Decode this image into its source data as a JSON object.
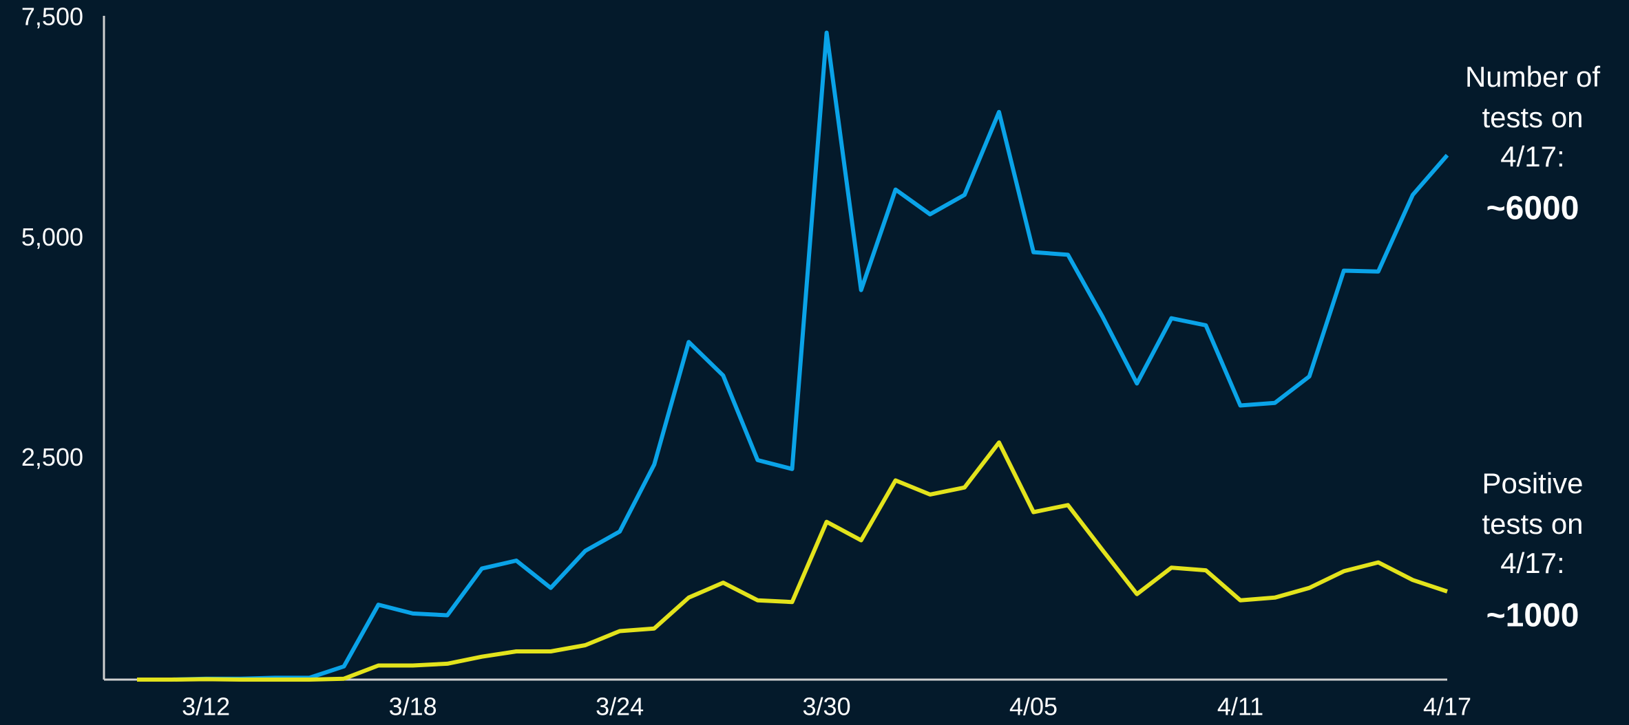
{
  "chart_data": {
    "type": "line",
    "categories": [
      null,
      null,
      "3/12",
      null,
      null,
      null,
      null,
      null,
      "3/18",
      null,
      null,
      null,
      null,
      null,
      "3/24",
      null,
      null,
      null,
      null,
      null,
      "3/30",
      null,
      null,
      null,
      null,
      null,
      "4/05",
      null,
      null,
      null,
      null,
      null,
      "4/11",
      null,
      null,
      null,
      null,
      null,
      "4/17"
    ],
    "series": [
      {
        "color": "#0aa3e8",
        "values": [
          0,
          0,
          10,
          10,
          20,
          20,
          150,
          850,
          750,
          730,
          1260,
          1350,
          1040,
          1460,
          1680,
          2440,
          3830,
          3450,
          2490,
          2390,
          7340,
          4420,
          5560,
          5280,
          5500,
          6440,
          4850,
          4820,
          4120,
          3360,
          4100,
          4020,
          3110,
          3140,
          3440,
          4640,
          4630,
          5500,
          5950
        ]
      },
      {
        "color": "#e3e31c",
        "values": [
          0,
          0,
          5,
          0,
          0,
          0,
          10,
          160,
          160,
          180,
          260,
          320,
          320,
          390,
          550,
          580,
          930,
          1100,
          900,
          880,
          1790,
          1580,
          2260,
          2100,
          2180,
          2690,
          1900,
          1980,
          1470,
          970,
          1270,
          1240,
          900,
          930,
          1040,
          1230,
          1330,
          1130,
          1000
        ]
      }
    ],
    "ylim": [
      0,
      7500
    ],
    "yticks": [
      {
        "value": 2500,
        "label": "2,500"
      },
      {
        "value": 5000,
        "label": "5,000"
      },
      {
        "value": 7500,
        "label": "7,500"
      }
    ],
    "grid": false,
    "annotations": [
      {
        "lines": [
          "Number of",
          "tests on",
          "4/17:"
        ],
        "value_text": "~6000"
      },
      {
        "lines": [
          "Positive",
          "tests on",
          "4/17:"
        ],
        "value_text": "~1000"
      }
    ]
  }
}
